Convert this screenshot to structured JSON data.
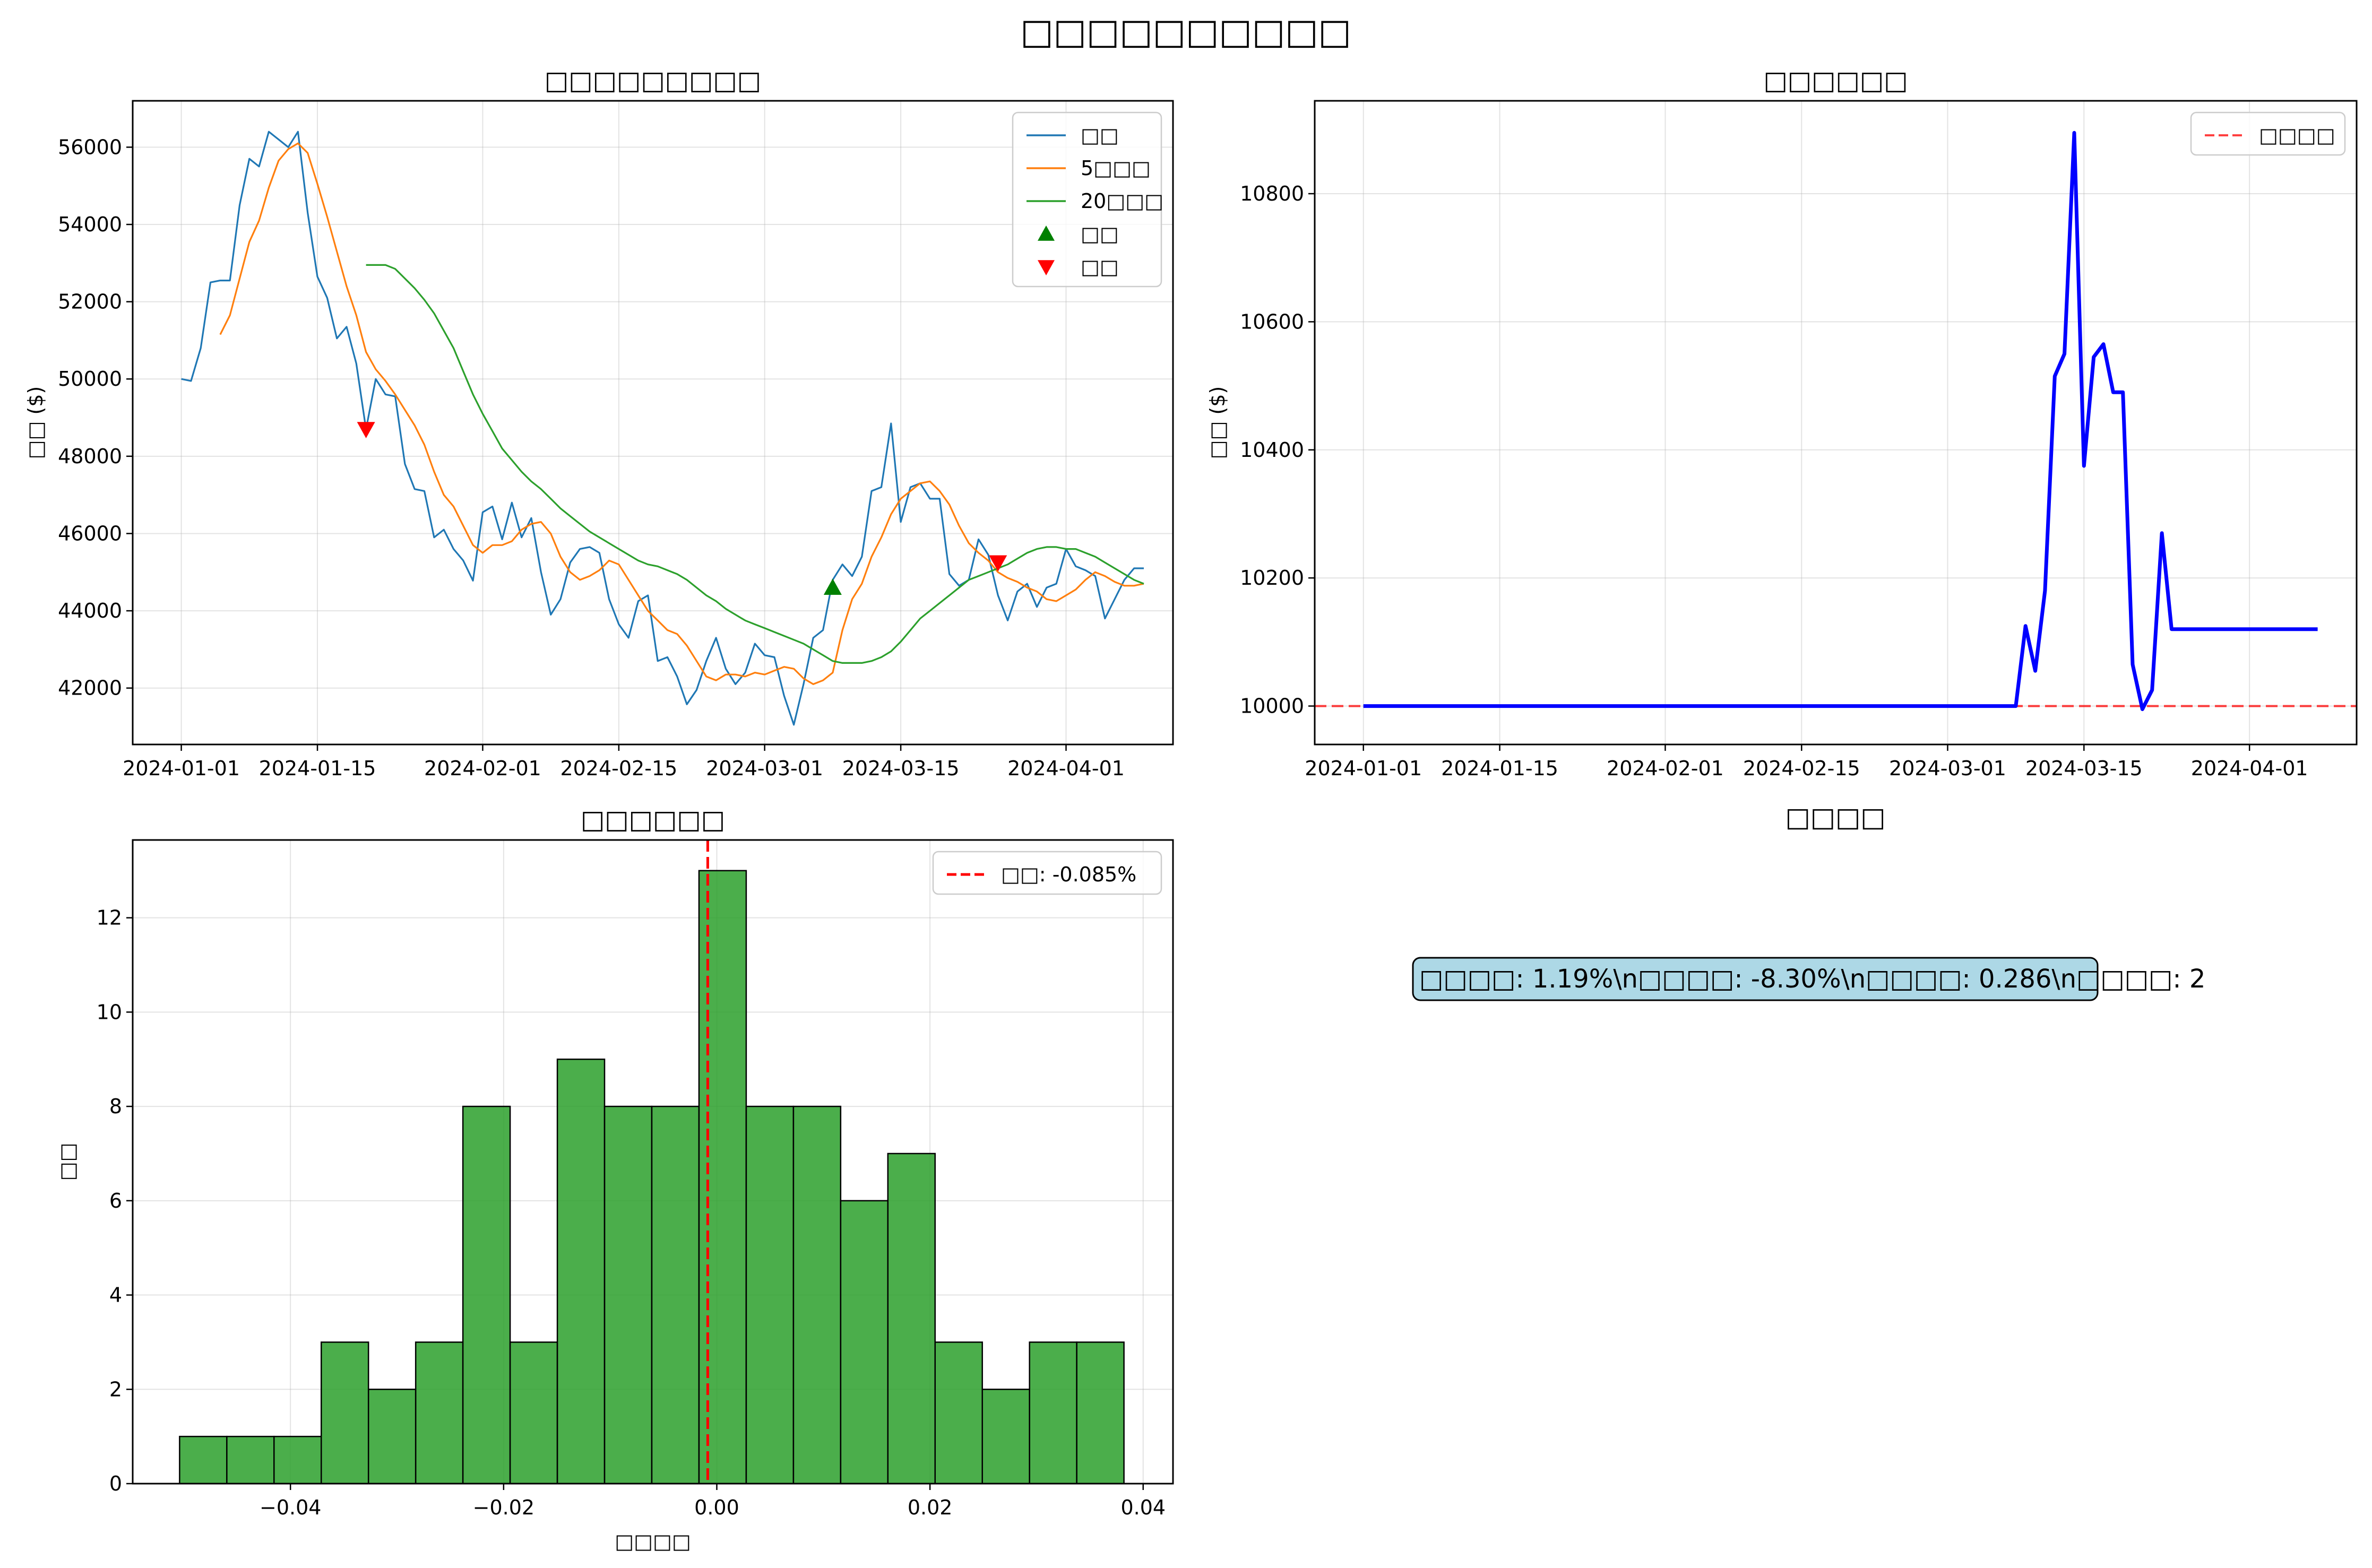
{
  "figure": {
    "title": "□□□□□□□□□□"
  },
  "chart_data": [
    {
      "id": "price",
      "type": "line",
      "title": "□□□□□□□□□",
      "xlabel": "",
      "ylabel": "□□ ($)",
      "ylim": [
        40540,
        57200
      ],
      "xlim": [
        "2023-12-27",
        "2024-04-12"
      ],
      "xticks": [
        "2024-01-01",
        "2024-01-15",
        "2024-02-01",
        "2024-02-15",
        "2024-03-01",
        "2024-03-15",
        "2024-04-01"
      ],
      "yticks": [
        42000,
        44000,
        46000,
        48000,
        50000,
        52000,
        54000,
        56000
      ],
      "grid": true,
      "legend": {
        "position": "top-right"
      },
      "x_start": "2024-01-01",
      "x_end": "2024-04-09",
      "series": [
        {
          "name": "□□",
          "color": "#1f77b4",
          "values": [
            50000,
            49950,
            50800,
            52500,
            52550,
            52550,
            54500,
            55700,
            55500,
            56400,
            56200,
            56000,
            56400,
            54300,
            52650,
            52100,
            51050,
            51350,
            50400,
            48700,
            50000,
            49600,
            49550,
            47800,
            47150,
            47100,
            45900,
            46100,
            45600,
            45300,
            44780,
            46550,
            46700,
            45850,
            46800,
            45900,
            46400,
            45000,
            43900,
            44300,
            45250,
            45600,
            45650,
            45500,
            44300,
            43650,
            43300,
            44250,
            44400,
            42700,
            42800,
            42300,
            41580,
            41950,
            42700,
            43300,
            42500,
            42100,
            42400,
            43150,
            42850,
            42800,
            41800,
            41050,
            42100,
            43300,
            43500,
            44800,
            45200,
            44900,
            45400,
            47100,
            47200,
            48850,
            46300,
            47200,
            47300,
            46900,
            46900,
            44950,
            44650,
            44800,
            45850,
            45450,
            44400,
            43750,
            44500,
            44700,
            44100,
            44600,
            44700,
            45600,
            45150,
            45050,
            44900,
            43800,
            44300,
            44800,
            45100,
            45100
          ]
        },
        {
          "name": "5□□□",
          "color": "#ff7f0e",
          "values": [
            null,
            null,
            null,
            null,
            51150,
            51650,
            52600,
            53550,
            54100,
            54950,
            55650,
            55950,
            56100,
            55850,
            55050,
            54200,
            53300,
            52400,
            51650,
            50700,
            50250,
            49950,
            49600,
            49200,
            48800,
            48300,
            47600,
            47000,
            46700,
            46200,
            45700,
            45500,
            45700,
            45700,
            45800,
            46100,
            46250,
            46300,
            46000,
            45400,
            45000,
            44800,
            44900,
            45050,
            45300,
            45200,
            44800,
            44400,
            44000,
            43750,
            43500,
            43400,
            43100,
            42700,
            42300,
            42200,
            42350,
            42350,
            42300,
            42400,
            42350,
            42450,
            42550,
            42500,
            42250,
            42100,
            42200,
            42400,
            43500,
            44300,
            44700,
            45400,
            45900,
            46500,
            46900,
            47100,
            47300,
            47350,
            47100,
            46750,
            46200,
            45750,
            45500,
            45300,
            45000,
            44850,
            44750,
            44600,
            44500,
            44300,
            44250,
            44400,
            44550,
            44800,
            45000,
            44900,
            44750,
            44650,
            44650,
            44700
          ]
        },
        {
          "name": "20□□□",
          "color": "#2ca02c",
          "values": [
            null,
            null,
            null,
            null,
            null,
            null,
            null,
            null,
            null,
            null,
            null,
            null,
            null,
            null,
            null,
            null,
            null,
            null,
            null,
            52950,
            52950,
            52950,
            52850,
            52600,
            52350,
            52050,
            51700,
            51250,
            50800,
            50200,
            49600,
            49100,
            48650,
            48200,
            47900,
            47600,
            47350,
            47150,
            46900,
            46650,
            46450,
            46250,
            46050,
            45900,
            45750,
            45600,
            45450,
            45300,
            45200,
            45150,
            45050,
            44950,
            44800,
            44600,
            44400,
            44250,
            44050,
            43900,
            43750,
            43650,
            43550,
            43450,
            43350,
            43250,
            43150,
            43000,
            42850,
            42700,
            42650,
            42650,
            42650,
            42700,
            42800,
            42950,
            43200,
            43500,
            43800,
            44000,
            44200,
            44400,
            44600,
            44800,
            44900,
            45000,
            45100,
            45200,
            45350,
            45500,
            45600,
            45650,
            45650,
            45600,
            45600,
            45500,
            45400,
            45250,
            45100,
            44950,
            44800,
            44700
          ]
        }
      ],
      "markers": [
        {
          "name": "□□",
          "symbol": "triangle-up",
          "color": "#008000",
          "points": [
            {
              "x": "2024-03-08",
              "y": 44600
            }
          ]
        },
        {
          "name": "□□",
          "symbol": "triangle-down",
          "color": "#ff0000",
          "points": [
            {
              "x": "2024-01-20",
              "y": 48700
            },
            {
              "x": "2024-03-25",
              "y": 45250
            }
          ]
        }
      ]
    },
    {
      "id": "portfolio",
      "type": "line",
      "title": "□□□□□□",
      "xlabel": "",
      "ylabel": "□□ ($)",
      "ylim": [
        9940,
        10945
      ],
      "xlim": [
        "2023-12-27",
        "2024-04-12"
      ],
      "xticks": [
        "2024-01-01",
        "2024-01-15",
        "2024-02-01",
        "2024-02-15",
        "2024-03-01",
        "2024-03-15",
        "2024-04-01"
      ],
      "yticks": [
        10000,
        10200,
        10400,
        10600,
        10800
      ],
      "grid": true,
      "legend": {
        "position": "top-right"
      },
      "x_start": "2024-01-01",
      "series": [
        {
          "name": "",
          "color": "#0000ff",
          "values": [
            10000,
            10000,
            10000,
            10000,
            10000,
            10000,
            10000,
            10000,
            10000,
            10000,
            10000,
            10000,
            10000,
            10000,
            10000,
            10000,
            10000,
            10000,
            10000,
            10000,
            10000,
            10000,
            10000,
            10000,
            10000,
            10000,
            10000,
            10000,
            10000,
            10000,
            10000,
            10000,
            10000,
            10000,
            10000,
            10000,
            10000,
            10000,
            10000,
            10000,
            10000,
            10000,
            10000,
            10000,
            10000,
            10000,
            10000,
            10000,
            10000,
            10000,
            10000,
            10000,
            10000,
            10000,
            10000,
            10000,
            10000,
            10000,
            10000,
            10000,
            10000,
            10000,
            10000,
            10000,
            10000,
            10000,
            10000,
            10000,
            10125,
            10055,
            10180,
            10515,
            10550,
            10895,
            10375,
            10545,
            10565,
            10490,
            10490,
            10065,
            9995,
            10025,
            10270,
            10120,
            10120,
            10120,
            10120,
            10120,
            10120,
            10120,
            10120,
            10120,
            10120,
            10120,
            10120,
            10120,
            10120,
            10120,
            10120
          ]
        }
      ],
      "hline": {
        "name": "□□□□",
        "y": 10000,
        "color": "#ff0000"
      }
    },
    {
      "id": "returns",
      "type": "bar",
      "title": "□□□□□□",
      "xlabel": "□□□□",
      "ylabel": "□□",
      "xlim": [
        -0.0548,
        0.0428
      ],
      "ylim": [
        0,
        13.65
      ],
      "xticks": [
        -0.04,
        -0.02,
        0.0,
        0.02,
        0.04
      ],
      "xtick_labels": [
        "−0.04",
        "−0.02",
        "0.00",
        "0.02",
        "0.04"
      ],
      "yticks": [
        0,
        2,
        4,
        6,
        8,
        10,
        12
      ],
      "grid": true,
      "legend": {
        "position": "top-right"
      },
      "bin_start": -0.0504,
      "bin_width": 0.00443,
      "values": [
        1,
        1,
        1,
        3,
        2,
        3,
        8,
        3,
        9,
        8,
        8,
        13,
        8,
        8,
        6,
        7,
        3,
        2,
        3,
        3
      ],
      "color": "#2ca02c",
      "mean_line": {
        "x": -0.00085,
        "label": "□□: -0.085%",
        "color": "#ff0000"
      }
    }
  ],
  "stats": {
    "title": "□□□□",
    "text": "□□□□: 1.19%\\n□□□□: -8.30%\\n□□□□: 0.286\\n□□□□: 2"
  }
}
